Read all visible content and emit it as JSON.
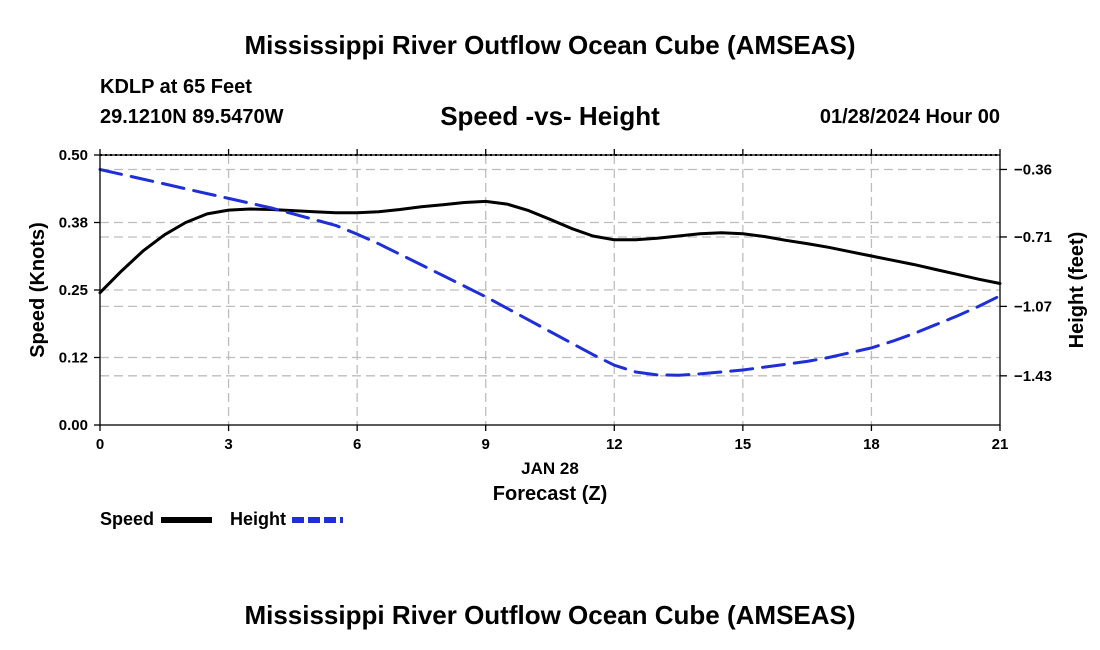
{
  "page_title_top": "Mississippi River Outflow Ocean Cube (AMSEAS)",
  "page_title_bottom": "Mississippi River Outflow Ocean Cube (AMSEAS)",
  "station": {
    "name_line": "KDLP at 65 Feet",
    "coords_line": "29.1210N  89.5470W",
    "datetime": "01/28/2024 Hour 00"
  },
  "chart_data": {
    "type": "line",
    "title": "Speed -vs- Height",
    "xlabel": "Forecast (Z)",
    "xsublabel": "JAN 28",
    "xlim": [
      0,
      21
    ],
    "x_ticks": [
      0,
      3,
      6,
      9,
      12,
      15,
      18,
      21
    ],
    "x_tick_labels": [
      "0",
      "3",
      "6",
      "9",
      "12",
      "15",
      "18",
      "21"
    ],
    "left_axis": {
      "label": "Speed (Knots)",
      "range": [
        0,
        0.5
      ],
      "ticks": [
        0.0,
        0.125,
        0.25,
        0.375,
        0.5
      ],
      "tick_labels": [
        "0.00",
        "0.12",
        "0.25",
        "0.38",
        "0.50"
      ]
    },
    "right_axis": {
      "label": "Height (feet)",
      "range": [
        -1.685,
        -0.285
      ],
      "ticks": [
        -0.36,
        -0.71,
        -1.07,
        -1.43
      ],
      "tick_labels": [
        "−0.36",
        "−0.71",
        "−1.07",
        "−1.43"
      ]
    },
    "grid": true,
    "series": [
      {
        "name": "Speed",
        "axis": "left",
        "color": "#000000",
        "dash": "solid",
        "x": [
          0,
          0.5,
          1,
          1.5,
          2,
          2.5,
          3,
          3.5,
          4,
          4.5,
          5,
          5.5,
          6,
          6.5,
          7,
          7.5,
          8,
          8.5,
          9,
          9.5,
          10,
          10.5,
          11,
          11.5,
          12,
          12.5,
          13,
          13.5,
          14,
          14.5,
          15,
          15.5,
          16,
          16.5,
          17,
          17.5,
          18,
          18.5,
          19,
          19.5,
          20,
          20.5,
          21
        ],
        "values": [
          0.245,
          0.285,
          0.322,
          0.352,
          0.375,
          0.391,
          0.398,
          0.4,
          0.399,
          0.397,
          0.395,
          0.393,
          0.393,
          0.395,
          0.399,
          0.404,
          0.408,
          0.412,
          0.414,
          0.409,
          0.397,
          0.381,
          0.364,
          0.35,
          0.343,
          0.343,
          0.346,
          0.35,
          0.354,
          0.356,
          0.354,
          0.349,
          0.342,
          0.336,
          0.329,
          0.321,
          0.313,
          0.305,
          0.297,
          0.288,
          0.279,
          0.27,
          0.262
        ]
      },
      {
        "name": "Height",
        "axis": "right",
        "color": "#1f2ed6",
        "dash": "dashed",
        "x": [
          0,
          0.5,
          1,
          1.5,
          2,
          2.5,
          3,
          3.5,
          4,
          4.5,
          5,
          5.5,
          6,
          6.5,
          7,
          7.5,
          8,
          8.5,
          9,
          9.5,
          10,
          10.5,
          11,
          11.5,
          12,
          12.5,
          13,
          13.5,
          14,
          14.5,
          15,
          15.5,
          16,
          16.5,
          17,
          17.5,
          18,
          18.5,
          19,
          19.5,
          20,
          20.5,
          21
        ],
        "values": [
          -0.36,
          -0.385,
          -0.41,
          -0.435,
          -0.46,
          -0.485,
          -0.51,
          -0.535,
          -0.56,
          -0.59,
          -0.62,
          -0.65,
          -0.695,
          -0.745,
          -0.8,
          -0.855,
          -0.91,
          -0.965,
          -1.02,
          -1.08,
          -1.14,
          -1.2,
          -1.26,
          -1.32,
          -1.375,
          -1.41,
          -1.425,
          -1.427,
          -1.42,
          -1.41,
          -1.4,
          -1.385,
          -1.37,
          -1.355,
          -1.335,
          -1.31,
          -1.285,
          -1.25,
          -1.21,
          -1.165,
          -1.12,
          -1.07,
          -1.015
        ]
      }
    ],
    "legend": {
      "placement": "bottom-left",
      "entries": [
        "Speed",
        "Height"
      ]
    }
  }
}
